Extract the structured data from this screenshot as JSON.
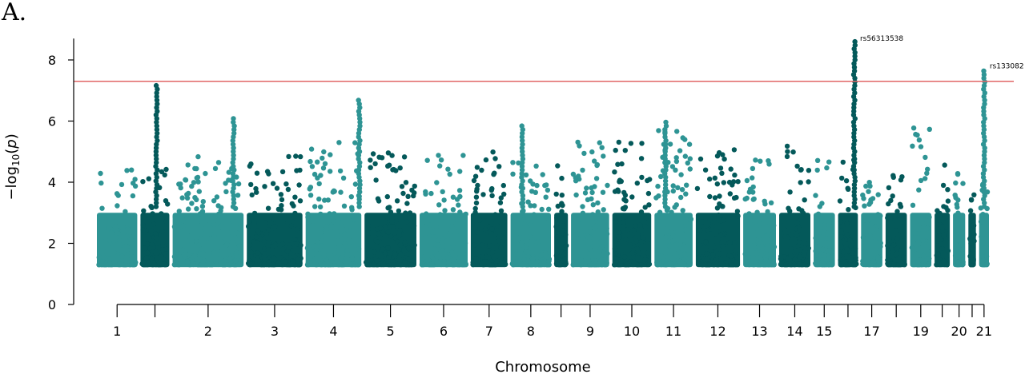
{
  "panel_label": "A.",
  "colors": {
    "light": "#2e9494",
    "dark": "#04595a",
    "threshold": "#e06666",
    "axis": "#000000"
  },
  "chart_data": {
    "type": "scatter",
    "kind": "manhattan",
    "title": "",
    "xlabel": "Chromosome",
    "ylabel_parts": {
      "prefix": "−log",
      "sub": "10",
      "mid": "(",
      "var": "p",
      "suffix": ")"
    },
    "ylim": [
      0,
      9
    ],
    "yticks": [
      0,
      2,
      4,
      6,
      8
    ],
    "threshold": 7.3,
    "chromosomes": [
      {
        "chr": 1,
        "label": "1",
        "max": 4.6,
        "peak": null
      },
      {
        "chr": 2,
        "label": "",
        "max": 4.5,
        "peak": {
          "y": 7.2,
          "pos": 0.55
        }
      },
      {
        "chr": 3,
        "label": "2",
        "max": 4.9,
        "peak": {
          "y": 6.1,
          "pos": 0.85
        }
      },
      {
        "chr": 4,
        "label": "3",
        "max": 5.0,
        "peak": null
      },
      {
        "chr": 5,
        "label": "4",
        "max": 5.3,
        "peak": {
          "y": 6.7,
          "pos": 0.95
        }
      },
      {
        "chr": 6,
        "label": "5",
        "max": 5.2,
        "peak": null
      },
      {
        "chr": 7,
        "label": "6",
        "max": 5.1,
        "peak": null
      },
      {
        "chr": 8,
        "label": "7",
        "max": 5.1,
        "peak": null
      },
      {
        "chr": 9,
        "label": "8",
        "max": 4.7,
        "peak": {
          "y": 5.9,
          "pos": 0.3
        }
      },
      {
        "chr": 10,
        "label": "",
        "max": 4.8,
        "peak": null
      },
      {
        "chr": 11,
        "label": "9",
        "max": 5.4,
        "peak": null
      },
      {
        "chr": 12,
        "label": "10",
        "max": 5.6,
        "peak": null
      },
      {
        "chr": 13,
        "label": "11",
        "max": 6.0,
        "peak": {
          "y": 6.0,
          "pos": 0.3
        }
      },
      {
        "chr": 14,
        "label": "12",
        "max": 5.1,
        "peak": null
      },
      {
        "chr": 15,
        "label": "13",
        "max": 4.8,
        "peak": null
      },
      {
        "chr": 16,
        "label": "14",
        "max": 5.2,
        "peak": null
      },
      {
        "chr": 17,
        "label": "15",
        "max": 4.8,
        "peak": null
      },
      {
        "chr": 18,
        "label": "",
        "max": 4.9,
        "peak": {
          "y": 8.6,
          "pos": 0.8
        }
      },
      {
        "chr": 19,
        "label": "17",
        "max": 4.4,
        "peak": null
      },
      {
        "chr": 20,
        "label": "",
        "max": 4.4,
        "peak": null
      },
      {
        "chr": 21,
        "label": "19",
        "max": 5.9,
        "peak": null
      },
      {
        "chr": 22,
        "label": "",
        "max": 4.6,
        "peak": null
      },
      {
        "chr": 23,
        "label": "20",
        "max": 4.6,
        "peak": null
      },
      {
        "chr": 24,
        "label": "",
        "max": 4.0,
        "peak": null
      },
      {
        "chr": 25,
        "label": "21",
        "max": 4.0,
        "peak": {
          "y": 7.7,
          "pos": 0.5
        }
      }
    ],
    "annotations": [
      {
        "text": "rs56313538",
        "chr": 18,
        "y": 8.6
      },
      {
        "text": "rs133082",
        "chr": 25,
        "y": 7.7
      }
    ]
  }
}
